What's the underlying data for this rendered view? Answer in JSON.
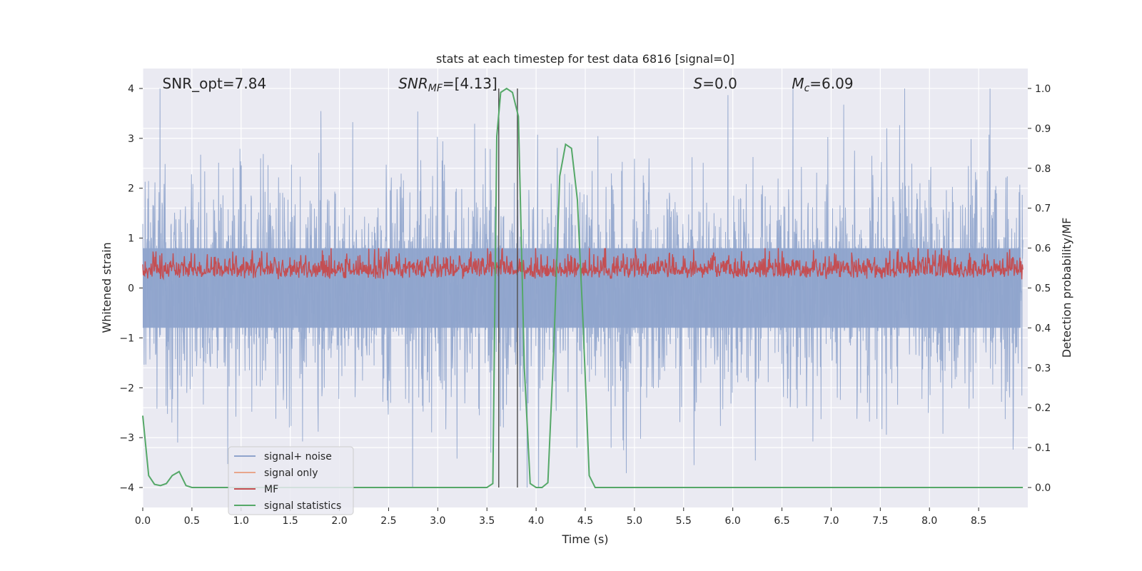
{
  "chart_data": {
    "type": "line",
    "title": "stats at each timestep for test data 6816 [signal=0]",
    "xlabel": "Time (s)",
    "ylabel_left": "Whitened strain",
    "ylabel_right": "Detection probability/MF",
    "xlim": [
      0.0,
      9.0
    ],
    "ylim_left": [
      -4.4,
      4.4
    ],
    "ylim_right": [
      -0.05,
      1.05
    ],
    "x_ticks": [
      "0.0",
      "0.5",
      "1.0",
      "1.5",
      "2.0",
      "2.5",
      "3.0",
      "3.5",
      "4.0",
      "4.5",
      "5.0",
      "5.5",
      "6.0",
      "6.5",
      "7.0",
      "7.5",
      "8.0",
      "8.5"
    ],
    "y_ticks_left": [
      "−4",
      "−3",
      "−2",
      "−1",
      "0",
      "1",
      "2",
      "3",
      "4"
    ],
    "y_ticks_right": [
      "0.0",
      "0.1",
      "0.2",
      "0.3",
      "0.4",
      "0.5",
      "0.6",
      "0.7",
      "0.8",
      "0.9",
      "1.0"
    ],
    "grid": true,
    "legend_position": "lower-left",
    "annotations": [
      {
        "label": "SNR_opt=7.84",
        "x": 0.2
      },
      {
        "label": "SNR",
        "sub": "MF",
        "rest": "=[4.13]",
        "x": 2.6
      },
      {
        "label": "S",
        "rest": "=0.0",
        "x": 5.6
      },
      {
        "label": "M",
        "sub": "c",
        "rest": "=6.09",
        "x": 6.6
      }
    ],
    "vertical_markers_x": [
      3.62,
      3.81
    ],
    "series": [
      {
        "name": "signal+ noise",
        "color": "#8fa4cc",
        "description_range": [
          -4.0,
          4.0
        ]
      },
      {
        "name": "signal only",
        "color": "#e8a68c"
      },
      {
        "name": "MF",
        "color": "#c44e52"
      },
      {
        "name": "signal statistics",
        "color": "#55a868",
        "x": [
          0.0,
          0.06,
          0.12,
          0.18,
          0.24,
          0.3,
          0.37,
          0.44,
          0.5,
          0.6,
          1.0,
          2.0,
          3.0,
          3.5,
          3.56,
          3.6,
          3.64,
          3.7,
          3.76,
          3.82,
          3.88,
          3.94,
          4.0,
          4.06,
          4.12,
          4.18,
          4.24,
          4.3,
          4.36,
          4.42,
          4.48,
          4.54,
          4.6,
          4.66,
          5.0,
          6.0,
          7.0,
          8.0,
          8.95
        ],
        "y": [
          0.18,
          0.03,
          0.008,
          0.005,
          0.01,
          0.03,
          0.04,
          0.005,
          0.0,
          0.0,
          0.0,
          0.0,
          0.0,
          0.0,
          0.01,
          0.88,
          0.99,
          1.0,
          0.99,
          0.93,
          0.3,
          0.01,
          0.0,
          0.0,
          0.012,
          0.35,
          0.78,
          0.86,
          0.85,
          0.72,
          0.4,
          0.03,
          0.0,
          0.0,
          0.0,
          0.0,
          0.0,
          0.0,
          0.0
        ]
      }
    ]
  }
}
